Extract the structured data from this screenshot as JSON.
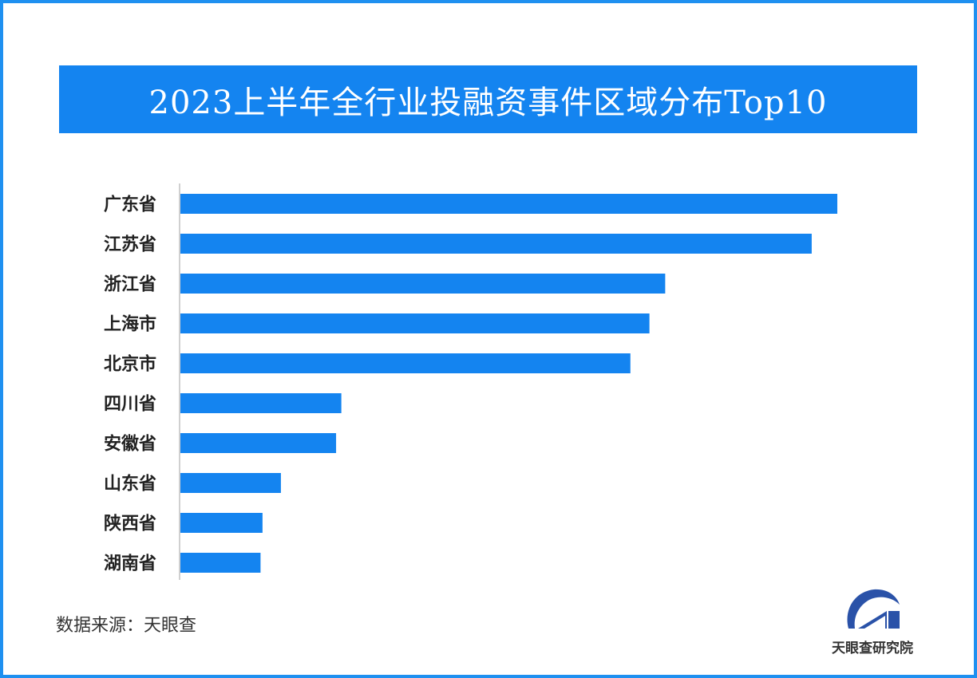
{
  "chart_data": {
    "type": "bar",
    "orientation": "horizontal",
    "title": "2023上半年全行业投融资事件区域分布Top10",
    "categories": [
      "广东省",
      "江苏省",
      "浙江省",
      "上海市",
      "北京市",
      "四川省",
      "安徽省",
      "山东省",
      "陕西省",
      "湖南省"
    ],
    "values": [
      100,
      96.1,
      73.8,
      71.4,
      68.5,
      24.5,
      23.7,
      15.3,
      12.5,
      12.2
    ],
    "value_note": "relative scale, max = 100 (no values printed)",
    "xlabel": "",
    "ylabel": "",
    "xlim": [
      0,
      100
    ],
    "grid": false,
    "bar_color": "#1484f0"
  },
  "source": "数据来源：天眼查",
  "logo_text": "天眼查研究院",
  "colors": {
    "accent": "#1484f0",
    "border": "#1e90f0"
  }
}
